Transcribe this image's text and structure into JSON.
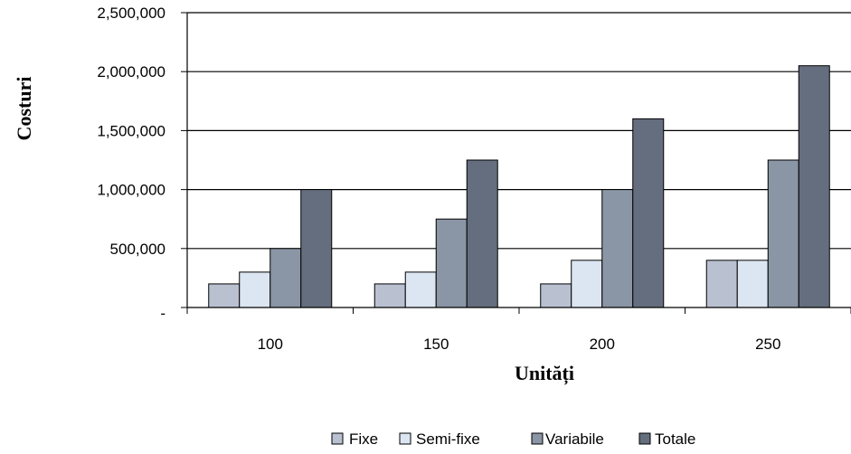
{
  "chart_data": {
    "type": "bar",
    "title": "",
    "xlabel": "Unități",
    "ylabel": "Costuri",
    "categories": [
      "100",
      "150",
      "200",
      "250"
    ],
    "series": [
      {
        "name": "Fixe",
        "values": [
          200000,
          200000,
          200000,
          400000
        ],
        "color": "#b9c1d1"
      },
      {
        "name": "Semi-fixe",
        "values": [
          300000,
          300000,
          400000,
          400000
        ],
        "color": "#dce6f2"
      },
      {
        "name": "Variabile",
        "values": [
          500000,
          750000,
          1000000,
          1250000
        ],
        "color": "#8a95a5"
      },
      {
        "name": "Totale",
        "values": [
          1000000,
          1250000,
          1600000,
          2050000
        ],
        "color": "#646e7e"
      }
    ],
    "ylim": [
      0,
      2500000
    ],
    "yticks": [
      {
        "value": 0,
        "label": "-"
      },
      {
        "value": 500000,
        "label": "500,000"
      },
      {
        "value": 1000000,
        "label": "1,000,000"
      },
      {
        "value": 1500000,
        "label": "1,500,000"
      },
      {
        "value": 2000000,
        "label": "2,000,000"
      },
      {
        "value": 2500000,
        "label": "2,500,000"
      }
    ],
    "grid": true,
    "legend_position": "bottom"
  }
}
